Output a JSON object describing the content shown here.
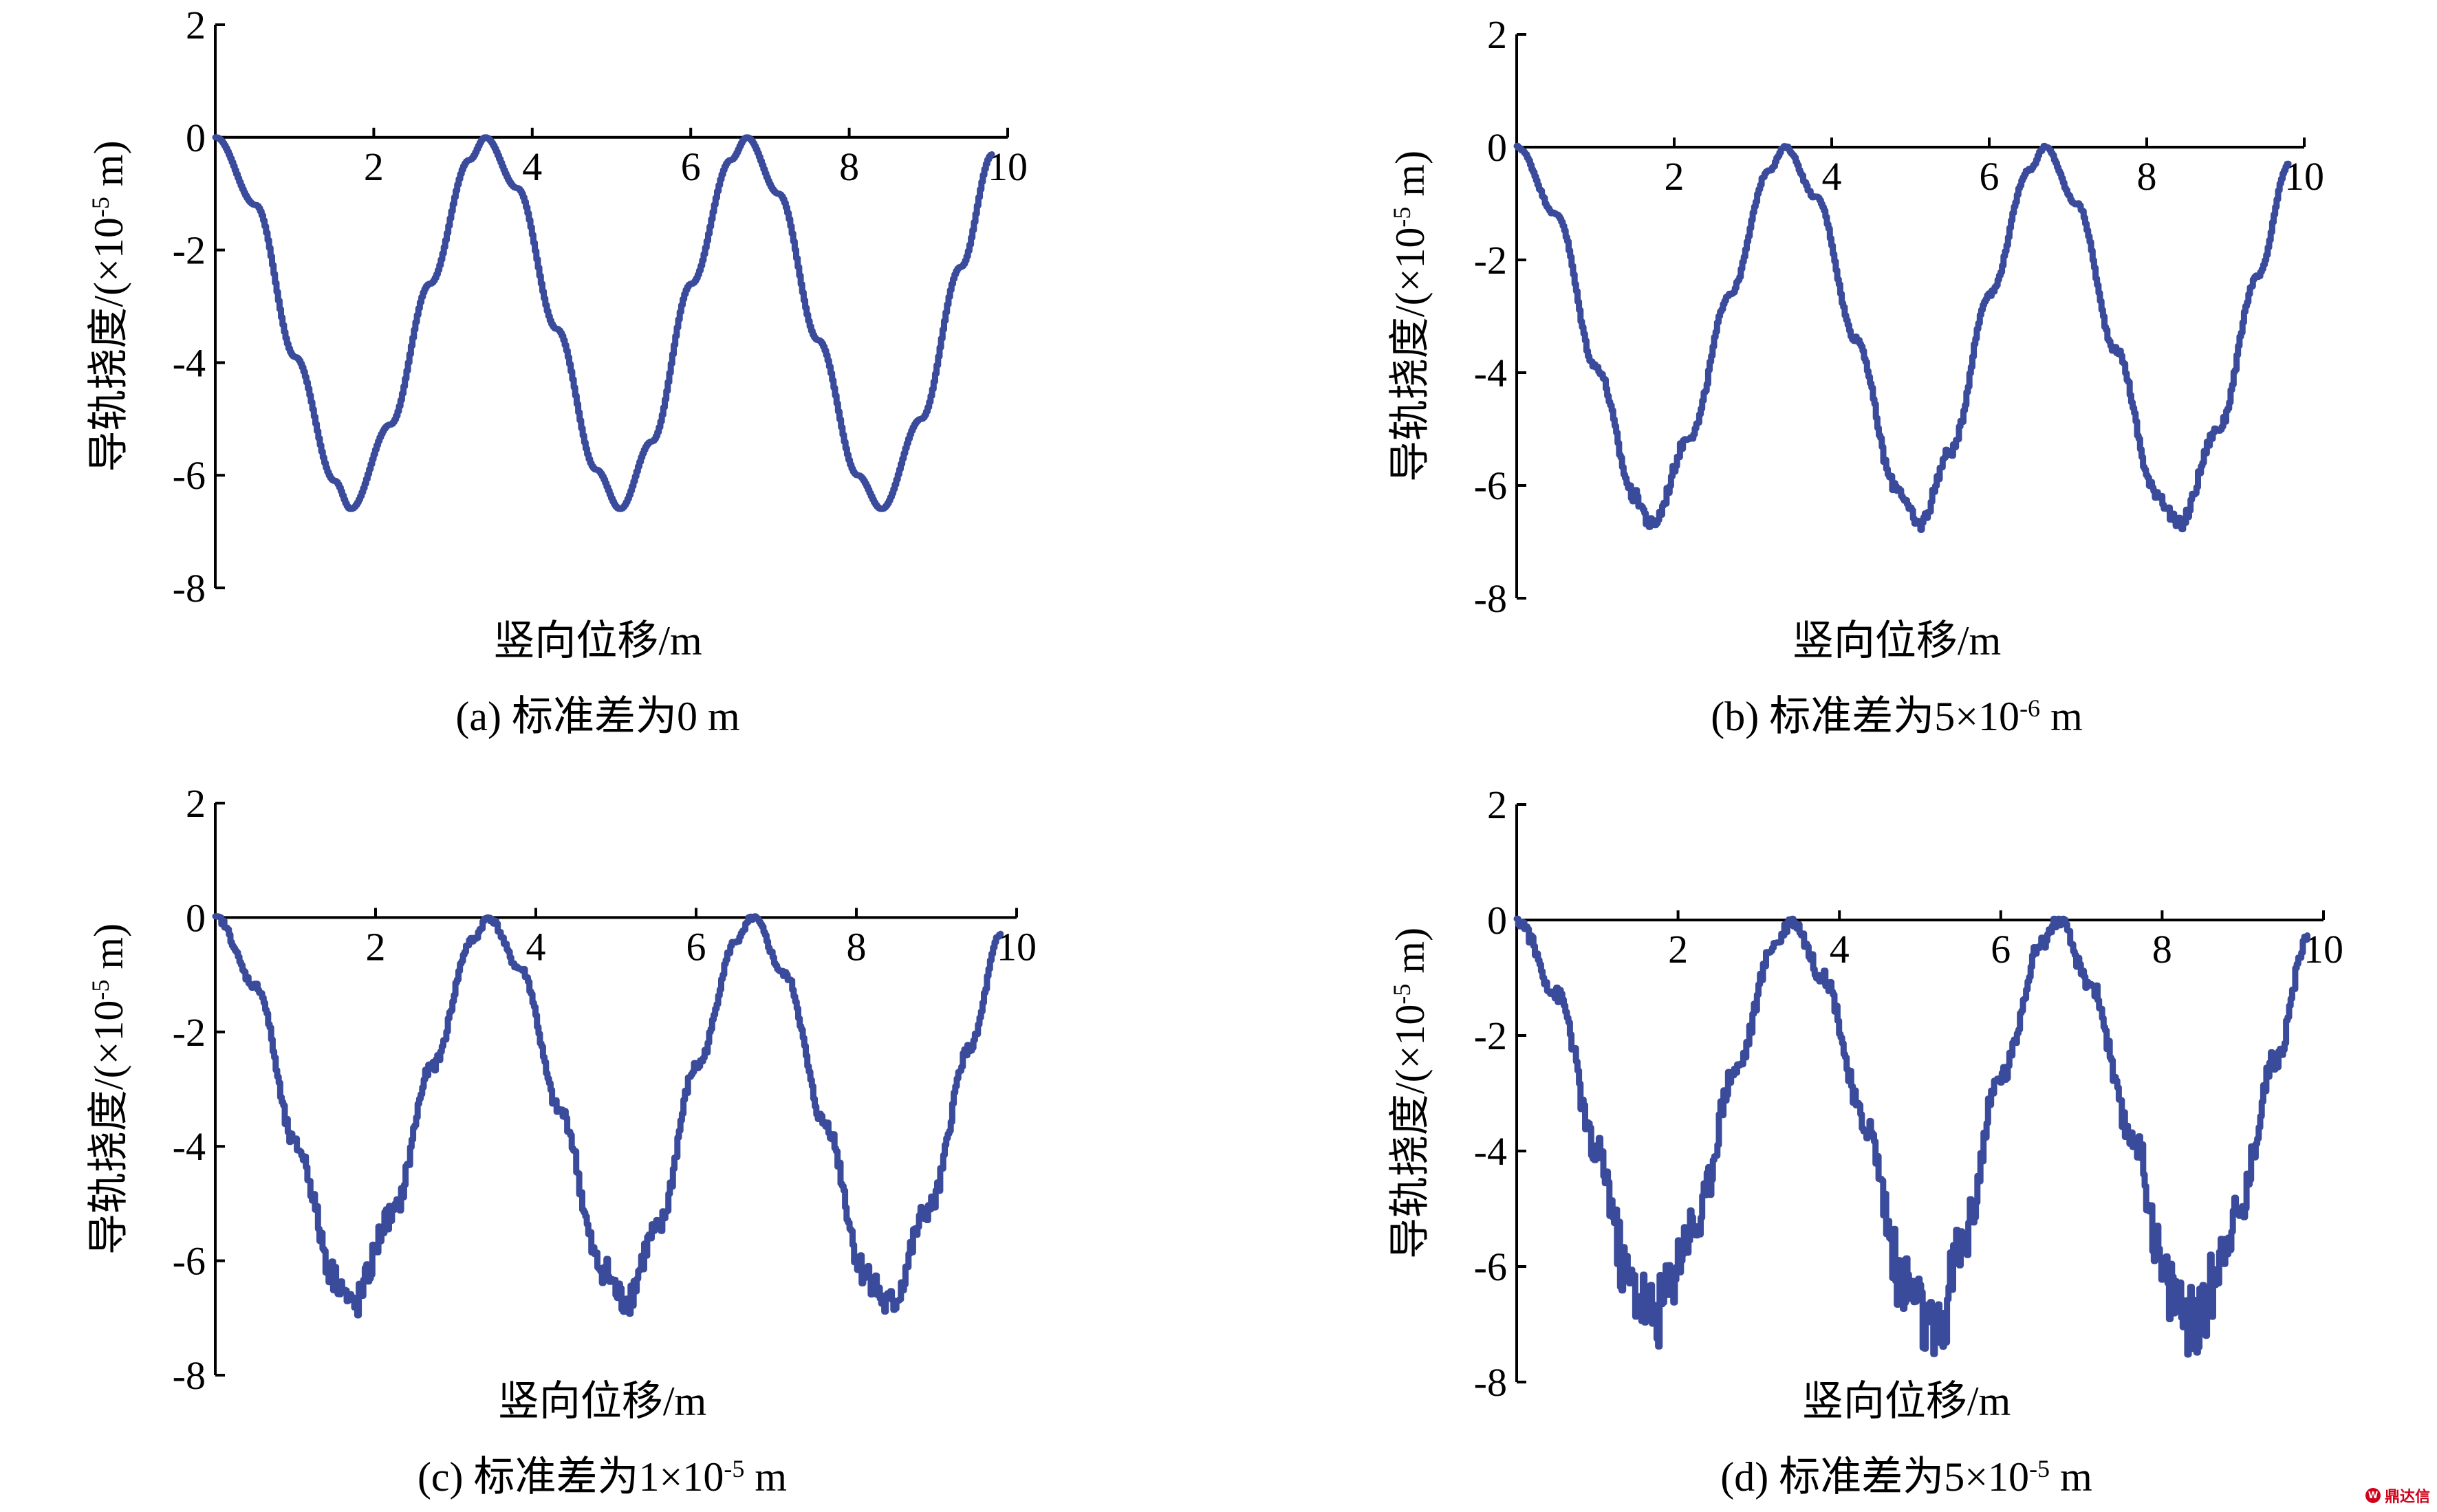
{
  "figure": {
    "watermark": {
      "icon": "logo-icon",
      "icon_text": "W",
      "text": "鼎达信"
    }
  },
  "chart_data": [
    {
      "type": "line",
      "caption": {
        "pre": "(a) 标准差为0 m",
        "sup": "",
        "post": ""
      },
      "xlabel": "竖向位移/m",
      "ylabel": {
        "pre": "导轨挠度/(×10",
        "sup": "-5",
        "post": " m)"
      },
      "xlim": [
        0,
        10
      ],
      "ylim": [
        -8,
        2
      ],
      "xticks": [
        "2",
        "4",
        "6",
        "8",
        "10"
      ],
      "xtick_values": [
        2,
        4,
        6,
        8,
        10
      ],
      "yticks": [
        "2",
        "0",
        "-2",
        "-4",
        "-6",
        "-8"
      ],
      "ytick_values": [
        2,
        0,
        -2,
        -4,
        -6,
        -8
      ],
      "grid": false,
      "series": [
        {
          "color": "#3b4b9c",
          "noise": 0,
          "peaks": [
            3.4,
            6.7
          ],
          "troughs": [
            1.7,
            5.1,
            8.4
          ],
          "x": [
            0,
            0.5,
            1.0,
            1.5,
            1.7,
            2.2,
            2.7,
            3.2,
            3.4,
            3.8,
            4.3,
            4.8,
            5.1,
            5.5,
            6.0,
            6.5,
            6.7,
            7.1,
            7.6,
            8.1,
            8.4,
            8.9,
            9.4,
            9.8
          ],
          "y": [
            0,
            -1.2,
            -3.9,
            -6.1,
            -6.6,
            -5.1,
            -2.6,
            -0.4,
            0,
            -0.9,
            -3.4,
            -5.9,
            -6.6,
            -5.4,
            -2.6,
            -0.4,
            0,
            -1.0,
            -3.6,
            -6.0,
            -6.6,
            -5.0,
            -2.3,
            -0.3
          ]
        }
      ]
    },
    {
      "type": "line",
      "caption": {
        "pre": "(b) 标准差为5×10",
        "sup": "-6",
        "post": " m"
      },
      "xlabel": "竖向位移/m",
      "ylabel": {
        "pre": "导轨挠度/(×10",
        "sup": "-5",
        "post": " m)"
      },
      "xlim": [
        0,
        10
      ],
      "ylim": [
        -8,
        2
      ],
      "xticks": [
        "2",
        "4",
        "6",
        "8",
        "10"
      ],
      "xtick_values": [
        2,
        4,
        6,
        8,
        10
      ],
      "yticks": [
        "2",
        "0",
        "-2",
        "-4",
        "-6",
        "-8"
      ],
      "ytick_values": [
        2,
        0,
        -2,
        -4,
        -6,
        -8
      ],
      "grid": false,
      "series": [
        {
          "color": "#3b4b9c",
          "noise": 0.06,
          "peaks": [
            3.4,
            6.7
          ],
          "troughs": [
            1.7,
            5.1,
            8.4
          ],
          "x": [
            0,
            0.5,
            1.0,
            1.5,
            1.7,
            2.2,
            2.7,
            3.2,
            3.4,
            3.8,
            4.3,
            4.8,
            5.1,
            5.5,
            6.0,
            6.5,
            6.7,
            7.1,
            7.6,
            8.1,
            8.4,
            8.9,
            9.4,
            9.8
          ],
          "y": [
            0,
            -1.2,
            -3.9,
            -6.2,
            -6.7,
            -5.1,
            -2.6,
            -0.4,
            0,
            -0.9,
            -3.4,
            -6.0,
            -6.7,
            -5.4,
            -2.6,
            -0.4,
            0,
            -1.0,
            -3.6,
            -6.1,
            -6.7,
            -5.0,
            -2.3,
            -0.3
          ]
        }
      ]
    },
    {
      "type": "line",
      "caption": {
        "pre": "(c) 标准差为1×10",
        "sup": "-5",
        "post": " m"
      },
      "xlabel": "竖向位移/m",
      "ylabel": {
        "pre": "导轨挠度/(×10",
        "sup": "-5",
        "post": " m)"
      },
      "xlim": [
        0,
        10
      ],
      "ylim": [
        -8,
        2
      ],
      "xticks": [
        "2",
        "4",
        "6",
        "8",
        "10"
      ],
      "xtick_values": [
        2,
        4,
        6,
        8,
        10
      ],
      "yticks": [
        "2",
        "0",
        "-2",
        "-4",
        "-6",
        "-8"
      ],
      "ytick_values": [
        2,
        0,
        -2,
        -4,
        -6,
        -8
      ],
      "grid": false,
      "series": [
        {
          "color": "#3b4b9c",
          "noise": 0.14,
          "peaks": [
            3.4,
            6.7
          ],
          "troughs": [
            1.7,
            5.1,
            8.4
          ],
          "x": [
            0,
            0.5,
            1.0,
            1.5,
            1.7,
            2.2,
            2.7,
            3.2,
            3.4,
            3.8,
            4.3,
            4.8,
            5.1,
            5.5,
            6.0,
            6.5,
            6.7,
            7.1,
            7.6,
            8.1,
            8.4,
            8.9,
            9.4,
            9.8
          ],
          "y": [
            0,
            -1.2,
            -4.0,
            -6.3,
            -6.8,
            -5.2,
            -2.6,
            -0.4,
            0,
            -0.9,
            -3.4,
            -6.1,
            -6.7,
            -5.5,
            -2.6,
            -0.4,
            0,
            -1.0,
            -3.6,
            -6.2,
            -6.8,
            -5.1,
            -2.3,
            -0.3
          ]
        }
      ]
    },
    {
      "type": "line",
      "caption": {
        "pre": "(d) 标准差为5×10",
        "sup": "-5",
        "post": " m"
      },
      "xlabel": "竖向位移/m",
      "ylabel": {
        "pre": "导轨挠度/(×10",
        "sup": "-5",
        "post": " m)"
      },
      "xlim": [
        0,
        10
      ],
      "ylim": [
        -8,
        2
      ],
      "xticks": [
        "2",
        "4",
        "6",
        "8",
        "10"
      ],
      "xtick_values": [
        2,
        4,
        6,
        8,
        10
      ],
      "yticks": [
        "2",
        "0",
        "-2",
        "-4",
        "-6",
        "-8"
      ],
      "ytick_values": [
        2,
        0,
        -2,
        -4,
        -6,
        -8
      ],
      "grid": false,
      "series": [
        {
          "color": "#3b4b9c",
          "noise": 0.3,
          "peaks": [
            3.4,
            6.7
          ],
          "troughs": [
            1.7,
            5.1,
            8.4
          ],
          "x": [
            0,
            0.5,
            1.0,
            1.4,
            1.7,
            2.2,
            2.7,
            3.2,
            3.4,
            3.8,
            4.3,
            4.8,
            5.2,
            5.5,
            6.0,
            6.5,
            6.7,
            7.1,
            7.6,
            8.1,
            8.4,
            8.9,
            9.4,
            9.8
          ],
          "y": [
            0,
            -1.3,
            -4.1,
            -6.3,
            -6.8,
            -5.3,
            -2.6,
            -0.4,
            0,
            -1.0,
            -3.5,
            -6.3,
            -7.3,
            -5.6,
            -2.7,
            -0.4,
            0,
            -1.1,
            -3.7,
            -6.4,
            -7.0,
            -5.2,
            -2.4,
            -0.3
          ]
        }
      ]
    }
  ]
}
